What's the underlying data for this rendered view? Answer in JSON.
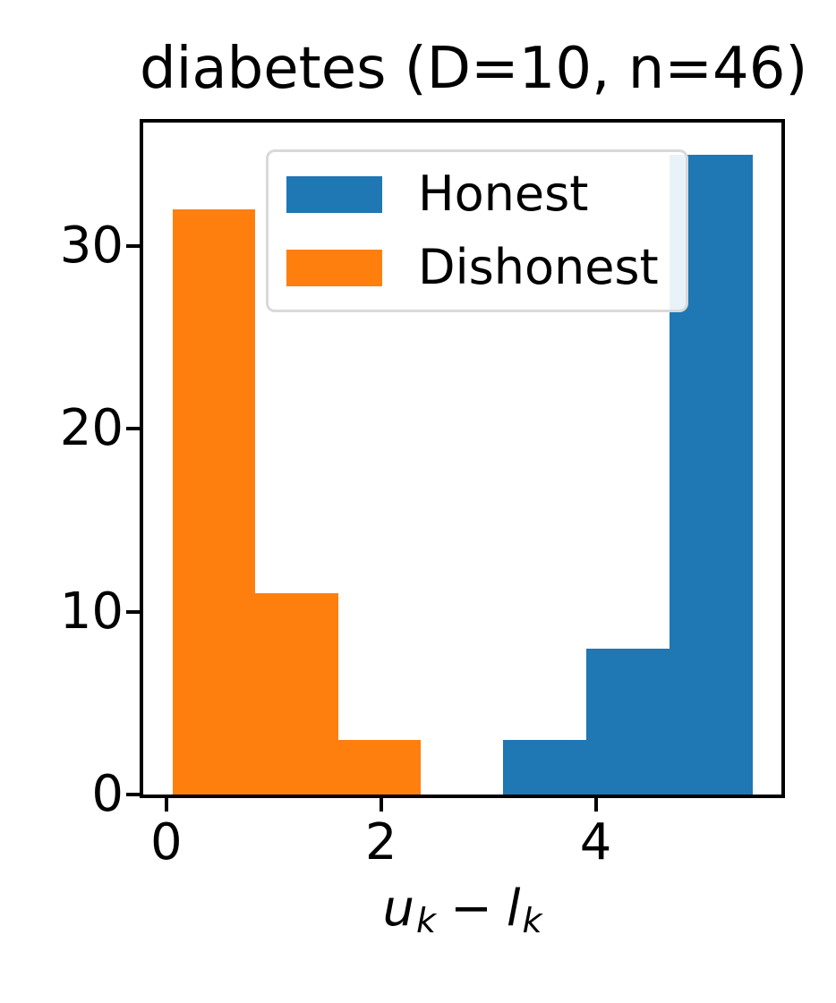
{
  "chart_data": {
    "type": "histogram-bar",
    "title": "diabetes (D=10, n=46)",
    "xlabel": {
      "term1": "u",
      "term1_sub": "k",
      "operator": "−",
      "term2": "l",
      "term2_sub": "k"
    },
    "x_ticks": [
      {
        "label": "0",
        "value": 0
      },
      {
        "label": "2",
        "value": 2
      },
      {
        "label": "4",
        "value": 4
      }
    ],
    "y_ticks": [
      {
        "label": "0",
        "value": 0
      },
      {
        "label": "10",
        "value": 10
      },
      {
        "label": "20",
        "value": 20
      },
      {
        "label": "30",
        "value": 30
      }
    ],
    "xlim": [
      -0.215,
      5.73
    ],
    "ylim": [
      0,
      36.75
    ],
    "grid": false,
    "legend_position": "upper-left-inside",
    "series": [
      {
        "name": "Honest",
        "color": "#1f77b4",
        "bin_edges": [
          3.14,
          3.91,
          4.69,
          5.46
        ],
        "counts": [
          3,
          8,
          35
        ]
      },
      {
        "name": "Dishonest",
        "color": "#ff7f0e",
        "bin_edges": [
          0.06,
          0.83,
          1.6,
          2.37
        ],
        "counts": [
          32,
          11,
          3
        ]
      }
    ]
  }
}
